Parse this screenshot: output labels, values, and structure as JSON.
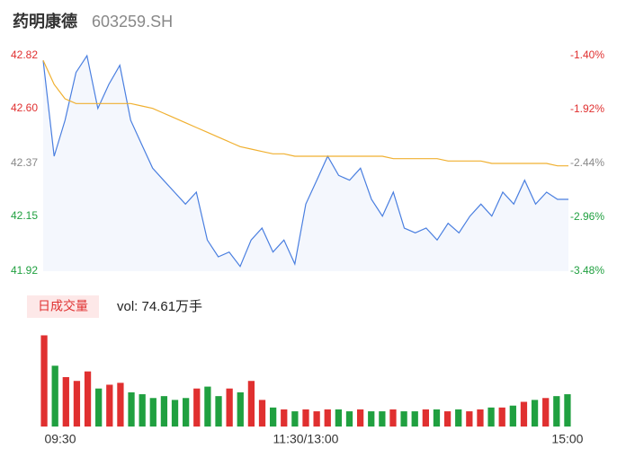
{
  "chart_data": [
    {
      "type": "line",
      "title": "药明康德",
      "subtitle": "603259.SH",
      "ylim": [
        41.92,
        42.82
      ],
      "yticks": [
        41.92,
        42.15,
        42.37,
        {
          "value": 42.6,
          "label": "42.60"
        },
        42.82
      ],
      "ytick_colors": [
        "#20a040",
        "#20a040",
        "#888888",
        "#e03030",
        "#e03030"
      ],
      "y2lim": [
        -3.48,
        -1.4
      ],
      "y2ticks": [
        {
          "value": -3.48,
          "label": "-3.48%"
        },
        {
          "value": -2.96,
          "label": "-2.96%"
        },
        {
          "value": -2.44,
          "label": "-2.44%"
        },
        {
          "value": -1.92,
          "label": "-1.92%"
        },
        {
          "value": -1.4,
          "label": "-1.40%"
        }
      ],
      "y2tick_colors": [
        "#20a040",
        "#20a040",
        "#888888",
        "#e03030",
        "#e03030"
      ],
      "series": [
        {
          "color": "#4a7fe0",
          "values": [
            42.8,
            42.4,
            42.55,
            42.75,
            42.82,
            42.6,
            42.7,
            42.78,
            42.55,
            42.45,
            42.35,
            42.3,
            42.25,
            42.2,
            42.25,
            42.05,
            41.98,
            42.0,
            41.94,
            42.05,
            42.1,
            42.0,
            42.05,
            41.95,
            42.2,
            42.3,
            42.4,
            42.32,
            42.3,
            42.35,
            42.22,
            42.15,
            42.25,
            42.1,
            42.08,
            42.1,
            42.05,
            42.12,
            42.08,
            42.15,
            42.2,
            42.15,
            42.25,
            42.2,
            42.3,
            42.2,
            42.25,
            42.22,
            42.22
          ]
        },
        {
          "color": "#f0b030",
          "values": [
            42.8,
            42.7,
            42.64,
            42.62,
            42.62,
            42.62,
            42.62,
            42.62,
            42.62,
            42.61,
            42.6,
            42.58,
            42.56,
            42.54,
            42.52,
            42.5,
            42.48,
            42.46,
            42.44,
            42.43,
            42.42,
            42.41,
            42.41,
            42.4,
            42.4,
            42.4,
            42.4,
            42.4,
            42.4,
            42.4,
            42.4,
            42.4,
            42.39,
            42.39,
            42.39,
            42.39,
            42.39,
            42.38,
            42.38,
            42.38,
            42.38,
            42.37,
            42.37,
            42.37,
            42.37,
            42.37,
            42.37,
            42.36,
            42.36
          ]
        }
      ]
    },
    {
      "type": "bar",
      "title": "日成交量",
      "annotation": "vol: 74.61万手",
      "ylim": [
        0,
        5.2
      ],
      "categories": [
        "09:30",
        null,
        null,
        null,
        null,
        null,
        null,
        null,
        null,
        null,
        null,
        null,
        null,
        null,
        null,
        null,
        null,
        null,
        null,
        null,
        null,
        null,
        null,
        null,
        "11:30/13:00",
        null,
        null,
        null,
        null,
        null,
        null,
        null,
        null,
        null,
        null,
        null,
        null,
        null,
        null,
        null,
        null,
        null,
        null,
        null,
        null,
        null,
        null,
        null,
        "15:00"
      ],
      "values": [
        4.8,
        3.2,
        2.6,
        2.4,
        2.9,
        2.0,
        2.2,
        2.3,
        1.8,
        1.7,
        1.5,
        1.6,
        1.4,
        1.5,
        2.0,
        2.1,
        1.6,
        2.0,
        1.8,
        2.4,
        1.4,
        1.0,
        0.9,
        0.8,
        0.9,
        0.8,
        0.9,
        0.9,
        0.8,
        0.9,
        0.8,
        0.8,
        0.9,
        0.8,
        0.8,
        0.9,
        0.9,
        0.8,
        0.9,
        0.8,
        0.9,
        1.0,
        1.0,
        1.1,
        1.3,
        1.4,
        1.5,
        1.6,
        1.7
      ],
      "colors": [
        "#e03030",
        "#20a040",
        "#e03030",
        "#e03030",
        "#e03030",
        "#20a040",
        "#e03030",
        "#e03030",
        "#20a040",
        "#20a040",
        "#20a040",
        "#20a040",
        "#20a040",
        "#20a040",
        "#e03030",
        "#20a040",
        "#20a040",
        "#e03030",
        "#20a040",
        "#e03030",
        "#e03030",
        "#20a040",
        "#e03030",
        "#20a040",
        "#e03030",
        "#e03030",
        "#e03030",
        "#20a040",
        "#20a040",
        "#e03030",
        "#20a040",
        "#20a040",
        "#e03030",
        "#20a040",
        "#20a040",
        "#e03030",
        "#20a040",
        "#e03030",
        "#20a040",
        "#e03030",
        "#e03030",
        "#20a040",
        "#e03030",
        "#20a040",
        "#e03030",
        "#20a040",
        "#e03030",
        "#20a040",
        "#20a040"
      ]
    }
  ]
}
